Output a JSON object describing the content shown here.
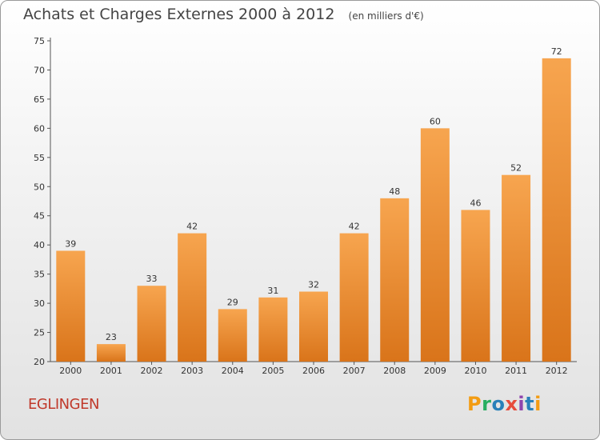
{
  "header": {
    "title": "Achats et Charges Externes 2000 à 2012",
    "unit": "(en milliers d'€)"
  },
  "footer": {
    "commune": "EGLINGEN",
    "logo_text": "Proxiti",
    "logo_colors": [
      "#f39c12",
      "#27ae60",
      "#2980b9",
      "#e74c3c",
      "#8e44ad",
      "#2980b9",
      "#f39c12"
    ]
  },
  "colors": {
    "bar_top": "#f7a54f",
    "bar_bottom": "#d9741a",
    "commune": "#c0392b"
  },
  "chart_data": {
    "type": "bar",
    "title": "Achats et Charges Externes 2000 à 2012",
    "subtitle": "(en milliers d'€)",
    "categories": [
      "2000",
      "2001",
      "2002",
      "2003",
      "2004",
      "2005",
      "2006",
      "2007",
      "2008",
      "2009",
      "2010",
      "2011",
      "2012"
    ],
    "values": [
      39,
      23,
      33,
      42,
      29,
      31,
      32,
      42,
      48,
      60,
      46,
      52,
      72
    ],
    "ylim": [
      20,
      75
    ],
    "yticks": [
      20,
      25,
      30,
      35,
      40,
      45,
      50,
      55,
      60,
      65,
      70,
      75
    ],
    "grid": false,
    "data_labels": true
  }
}
